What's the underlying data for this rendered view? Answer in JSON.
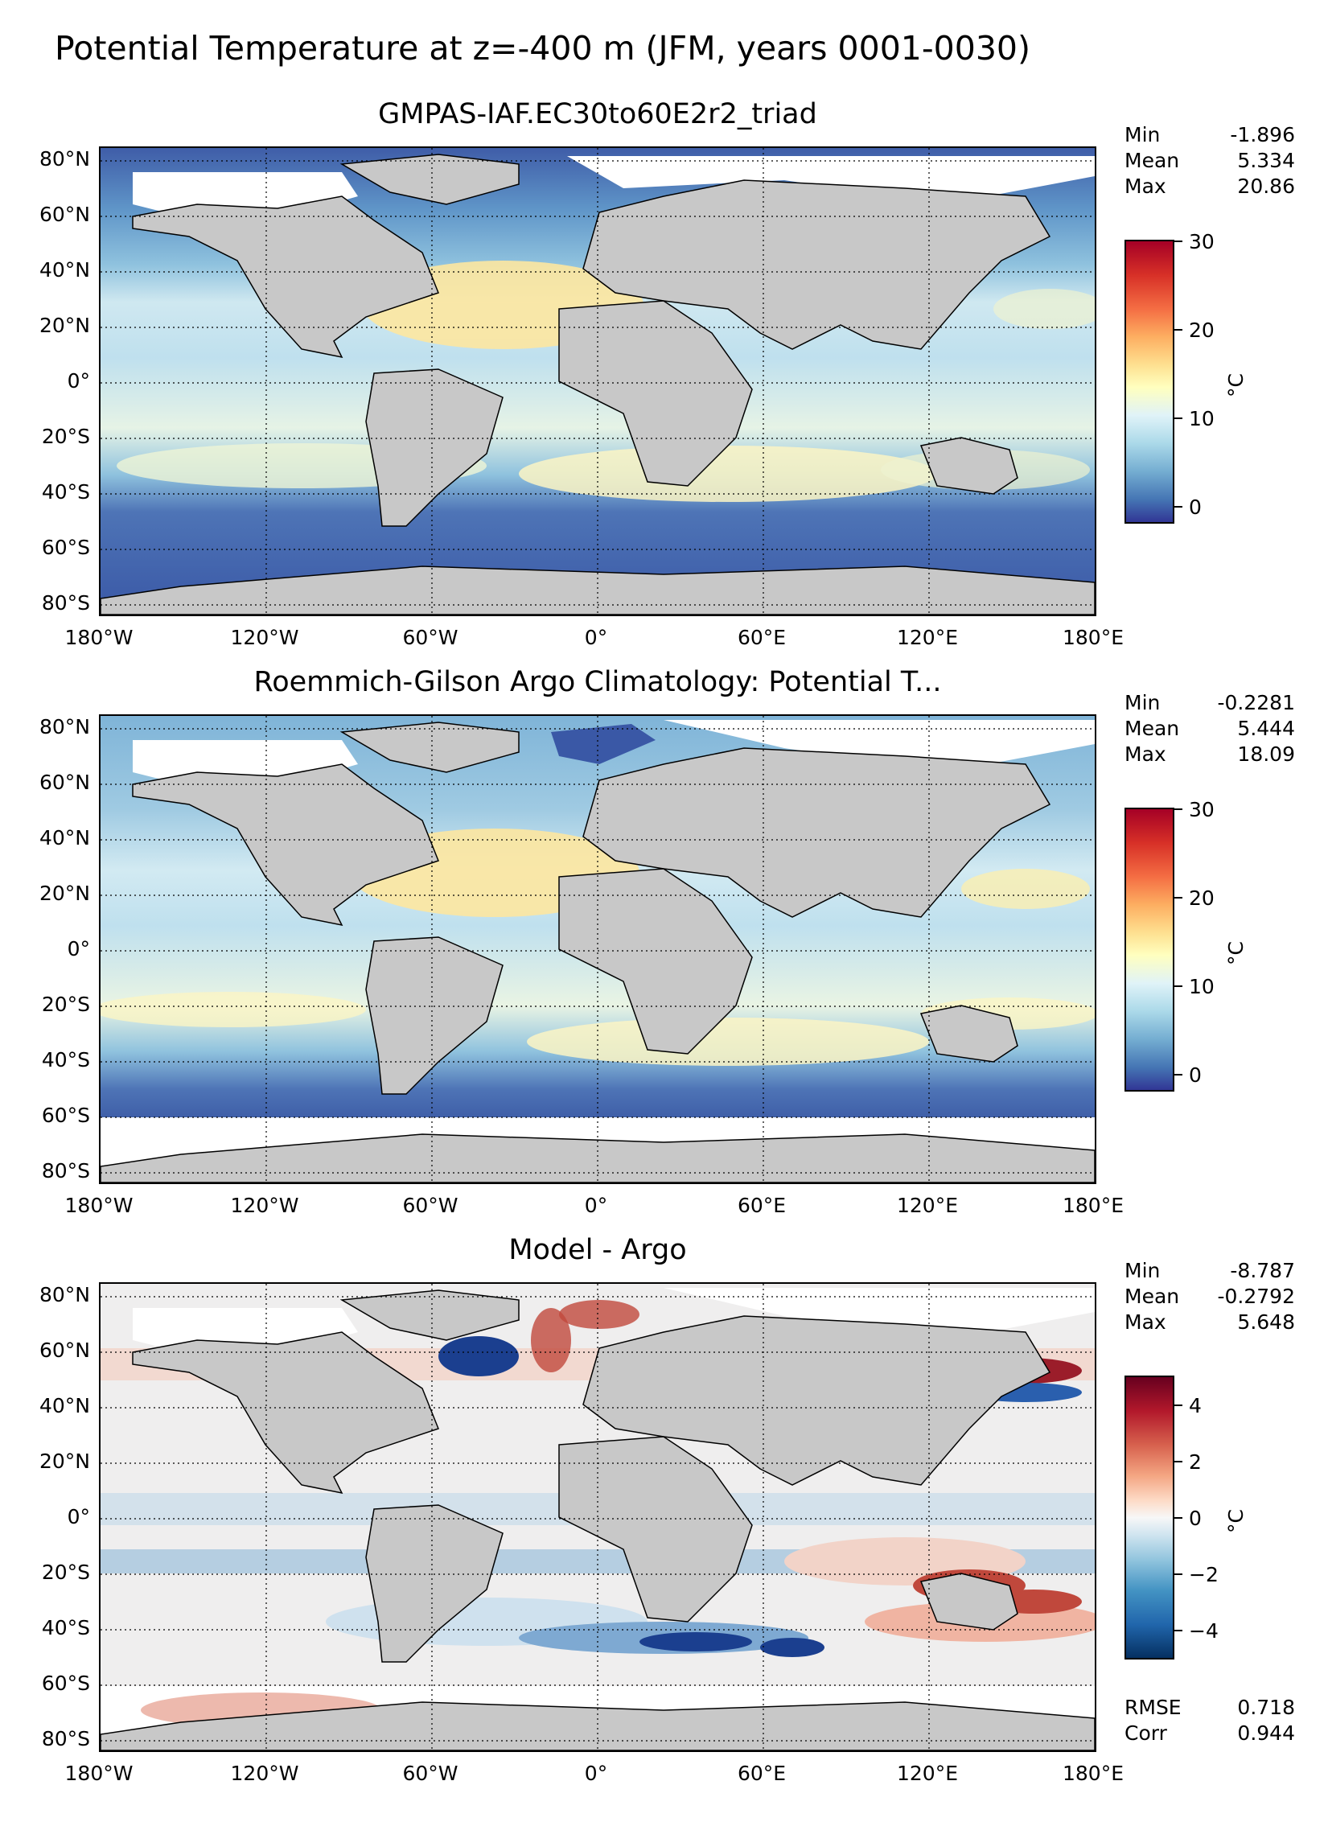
{
  "figure": {
    "title": "Potential Temperature at z=-400 m (JFM, years 0001-0030)"
  },
  "axes": {
    "lat_labels": [
      "80°N",
      "60°N",
      "40°N",
      "20°N",
      "0°",
      "20°S",
      "40°S",
      "60°S",
      "80°S"
    ],
    "lon_labels": [
      "180°W",
      "120°W",
      "60°W",
      "0°",
      "60°E",
      "120°E",
      "180°E"
    ]
  },
  "panels": [
    {
      "title": "GMPAS-IAF.EC30to60E2r2_triad",
      "stats": [
        {
          "label": "Min",
          "value": "-1.896"
        },
        {
          "label": "Mean",
          "value": "5.334"
        },
        {
          "label": "Max",
          "value": "20.86"
        }
      ],
      "colorbar": {
        "ticks": [
          "30",
          "20",
          "10",
          "0"
        ],
        "unit": "°C",
        "range": [
          -2,
          30
        ],
        "colormap": "RdYlBu_r"
      }
    },
    {
      "title": "Roemmich-Gilson Argo Climatology: Potential T...",
      "stats": [
        {
          "label": "Min",
          "value": "-0.2281"
        },
        {
          "label": "Mean",
          "value": "5.444"
        },
        {
          "label": "Max",
          "value": "18.09"
        }
      ],
      "colorbar": {
        "ticks": [
          "30",
          "20",
          "10",
          "0"
        ],
        "unit": "°C",
        "range": [
          -2,
          30
        ],
        "colormap": "RdYlBu_r"
      }
    },
    {
      "title": "Model - Argo",
      "stats": [
        {
          "label": "Min",
          "value": "-8.787"
        },
        {
          "label": "Mean",
          "value": "-0.2792"
        },
        {
          "label": "Max",
          "value": "5.648"
        }
      ],
      "colorbar": {
        "ticks": [
          "4",
          "2",
          "0",
          "−2",
          "−4"
        ],
        "unit": "°C",
        "range": [
          -5,
          5
        ],
        "colormap": "RdBu_r"
      },
      "footer_stats": [
        {
          "label": "RMSE",
          "value": "0.718"
        },
        {
          "label": "Corr",
          "value": "0.944"
        }
      ]
    }
  ],
  "colors": {
    "land": "#c8c8c8",
    "abs_cold": "#3a58a6",
    "abs_cool": "#6da6d0",
    "abs_mid": "#d8edf4",
    "abs_warm": "#fde7a0",
    "abs_hot": "#f0a050",
    "diff_neg": "#2a5fae",
    "diff_zero": "#efeeee",
    "diff_pos": "#c0483c"
  }
}
